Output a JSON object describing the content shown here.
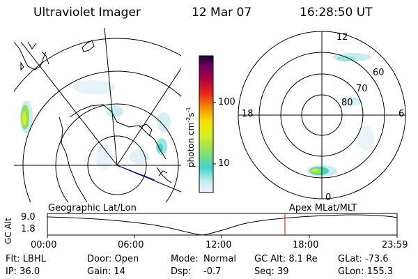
{
  "header": {
    "title": "Ultraviolet Imager",
    "date": "12 Mar 07",
    "time": "16:28:50 UT"
  },
  "colorbar": {
    "label": "photon cm",
    "label_sup1": "-2",
    "label_s": "s",
    "label_sup2": "-1",
    "tick_100": "100",
    "tick_10": "10",
    "colors": [
      "#f0f4f8",
      "#c8ecf0",
      "#44d4cc",
      "#8ce060",
      "#d8f020",
      "#f8e000",
      "#f09000",
      "#e82818",
      "#b80040",
      "#700060",
      "#200030"
    ]
  },
  "geo_panel": {
    "label": "Geographic Lat/Lon"
  },
  "apex_panel": {
    "label": "Apex MLat/MLT",
    "mlt_top": "12",
    "mlt_left": "18",
    "mlt_right": "6",
    "mlt_bottom": "0",
    "lat_60": "60",
    "lat_70": "70",
    "lat_80": "80"
  },
  "altitude_plot": {
    "ylabel": "GC Alt",
    "y_top": "9.0",
    "y_bottom": "1.8",
    "x_ticks": [
      "00:00",
      "06:00",
      "12:00",
      "18:00",
      "23:59"
    ]
  },
  "info": {
    "row1": {
      "flt": "Flt: LBHL",
      "door": "Door: Open",
      "mode_label": "Mode:",
      "mode_value": "Normal",
      "alt": "GC Alt: 8.1 Re",
      "glat": "GLat: -73.6"
    },
    "row2": {
      "ip": "IP: 36.0",
      "gain": "Gain: 14",
      "dsp_label": "Dsp:",
      "dsp_value": "-0.7",
      "seq": "Seq: 39",
      "glon": "GLon: 155.3"
    }
  }
}
